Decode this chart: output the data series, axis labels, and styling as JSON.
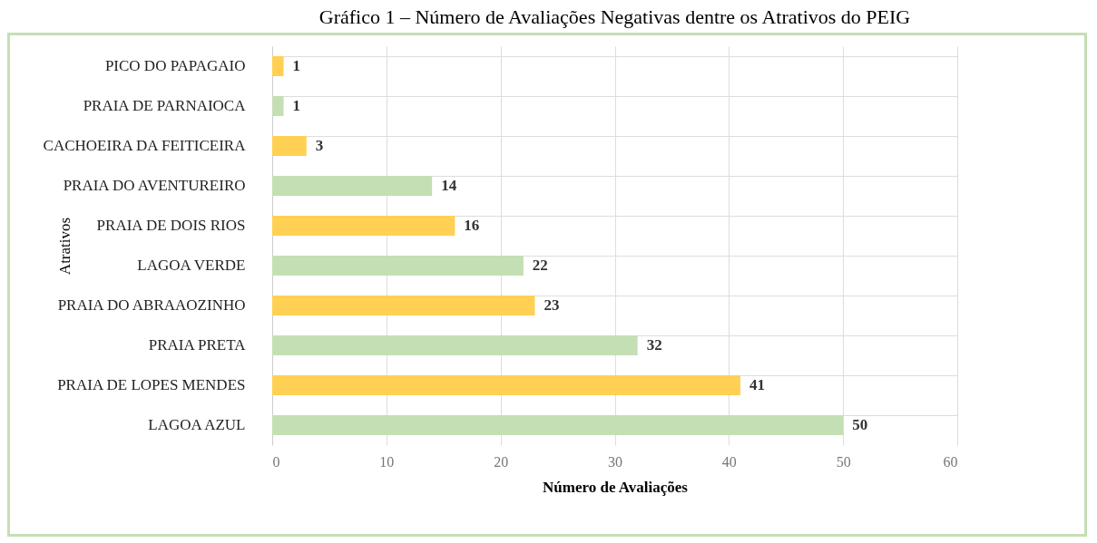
{
  "chart_data": {
    "type": "bar",
    "orientation": "horizontal",
    "title": "Gráfico 1 – Número de Avaliações Negativas dentre os Atrativos do PEIG",
    "xlabel": "Número de Avaliações",
    "ylabel": "Atrativos",
    "categories": [
      "PICO DO PAPAGAIO",
      "PRAIA DE PARNAIOCA",
      "CACHOEIRA DA FEITICEIRA",
      "PRAIA DO AVENTUREIRO",
      "PRAIA DE DOIS RIOS",
      "LAGOA VERDE",
      "PRAIA DO ABRAAOZINHO",
      "PRAIA PRETA",
      "PRAIA DE LOPES MENDES",
      "LAGOA AZUL"
    ],
    "values": [
      1,
      1,
      3,
      14,
      16,
      22,
      23,
      32,
      41,
      50
    ],
    "colors": [
      "#ffd054",
      "#c5dfb4",
      "#ffd054",
      "#c5dfb4",
      "#ffd054",
      "#c5dfb4",
      "#ffd054",
      "#c5dfb4",
      "#ffd054",
      "#c5dfb4"
    ],
    "xlim": [
      0,
      60
    ],
    "xticks": [
      0,
      10,
      20,
      30,
      40,
      50,
      60
    ],
    "grid": true,
    "data_labels": true
  }
}
